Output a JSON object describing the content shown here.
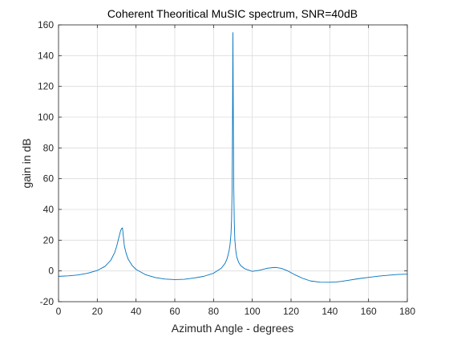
{
  "chart_data": {
    "type": "line",
    "title": "Coherent Theoritical MuSIC spectrum, SNR=40dB",
    "xlabel": "Azimuth Angle - degrees",
    "ylabel": "gain in dB",
    "xlim": [
      0,
      180
    ],
    "ylim": [
      -20,
      160
    ],
    "xticks": [
      0,
      20,
      40,
      60,
      80,
      100,
      120,
      140,
      160,
      180
    ],
    "yticks": [
      -20,
      0,
      20,
      40,
      60,
      80,
      100,
      120,
      140,
      160
    ],
    "grid": true,
    "line_color": "#0072BD",
    "series": [
      {
        "x": [
          0,
          5,
          10,
          15,
          20,
          24,
          27,
          29,
          30,
          31,
          32,
          32.5,
          33,
          33.5,
          34,
          35,
          36,
          38,
          40,
          45,
          50,
          55,
          60,
          65,
          70,
          75,
          80,
          84,
          86,
          87,
          88,
          88.5,
          89,
          89.3,
          89.6,
          89.8,
          90,
          90.2,
          90.4,
          90.7,
          91,
          91.5,
          92,
          93,
          94,
          96,
          100,
          104,
          108,
          112,
          115,
          118,
          122,
          126,
          130,
          135,
          140,
          143,
          146,
          150,
          155,
          160,
          165,
          170,
          175,
          180
        ],
        "y": [
          -3.5,
          -3.2,
          -2.6,
          -1.5,
          0.3,
          3,
          7,
          12,
          16,
          21,
          26,
          27.5,
          28,
          22,
          16,
          11,
          7.5,
          3.5,
          1,
          -2.5,
          -4.3,
          -5.3,
          -5.6,
          -5.4,
          -4.6,
          -3.5,
          -1.5,
          1.8,
          5,
          8,
          13,
          17,
          24,
          33,
          55,
          95,
          155,
          100,
          58,
          32,
          20,
          13,
          9,
          5.5,
          3.5,
          1.5,
          -0.3,
          0.5,
          1.8,
          2.3,
          1.7,
          0.2,
          -2.5,
          -4.8,
          -6.5,
          -7.3,
          -7.4,
          -7.2,
          -6.8,
          -6,
          -5,
          -4.2,
          -3.4,
          -2.8,
          -2.3,
          -2.1
        ]
      }
    ]
  }
}
